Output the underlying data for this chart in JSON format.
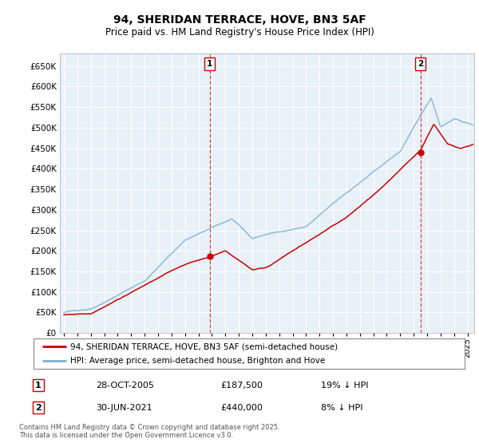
{
  "title": "94, SHERIDAN TERRACE, HOVE, BN3 5AF",
  "subtitle": "Price paid vs. HM Land Registry's House Price Index (HPI)",
  "ylim": [
    0,
    680000
  ],
  "xlim_start": 1994.7,
  "xlim_end": 2025.5,
  "purchase1": {
    "date_num": 2005.83,
    "price": 187500,
    "label": "1",
    "text": "28-OCT-2005",
    "amount": "£187,500",
    "pct": "19% ↓ HPI"
  },
  "purchase2": {
    "date_num": 2021.5,
    "price": 440000,
    "label": "2",
    "text": "30-JUN-2021",
    "amount": "£440,000",
    "pct": "8% ↓ HPI"
  },
  "legend_line1": "94, SHERIDAN TERRACE, HOVE, BN3 5AF (semi-detached house)",
  "legend_line2": "HPI: Average price, semi-detached house, Brighton and Hove",
  "footnote": "Contains HM Land Registry data © Crown copyright and database right 2025.\nThis data is licensed under the Open Government Licence v3.0.",
  "line_color_red": "#cc0000",
  "line_color_blue": "#7ab0d4",
  "vline_color": "#cc0000",
  "grid_color": "#cccccc",
  "background_color": "#ffffff"
}
